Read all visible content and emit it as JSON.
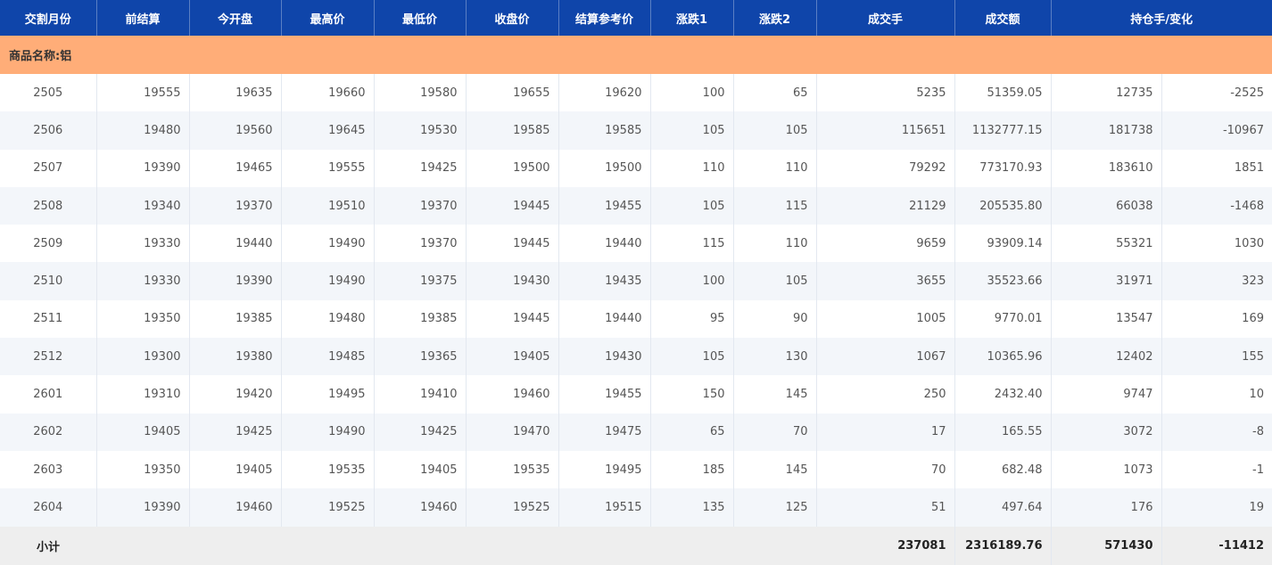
{
  "headers": [
    "交割月份",
    "前结算",
    "今开盘",
    "最高价",
    "最低价",
    "收盘价",
    "结算参考价",
    "涨跌1",
    "涨跌2",
    "成交手",
    "成交额",
    "持仓手/变化"
  ],
  "category_label": "商品名称:铝",
  "rows": [
    [
      "2505",
      "19555",
      "19635",
      "19660",
      "19580",
      "19655",
      "19620",
      "100",
      "65",
      "5235",
      "51359.05",
      "12735",
      "-2525"
    ],
    [
      "2506",
      "19480",
      "19560",
      "19645",
      "19530",
      "19585",
      "19585",
      "105",
      "105",
      "115651",
      "1132777.15",
      "181738",
      "-10967"
    ],
    [
      "2507",
      "19390",
      "19465",
      "19555",
      "19425",
      "19500",
      "19500",
      "110",
      "110",
      "79292",
      "773170.93",
      "183610",
      "1851"
    ],
    [
      "2508",
      "19340",
      "19370",
      "19510",
      "19370",
      "19445",
      "19455",
      "105",
      "115",
      "21129",
      "205535.80",
      "66038",
      "-1468"
    ],
    [
      "2509",
      "19330",
      "19440",
      "19490",
      "19370",
      "19445",
      "19440",
      "115",
      "110",
      "9659",
      "93909.14",
      "55321",
      "1030"
    ],
    [
      "2510",
      "19330",
      "19390",
      "19490",
      "19375",
      "19430",
      "19435",
      "100",
      "105",
      "3655",
      "35523.66",
      "31971",
      "323"
    ],
    [
      "2511",
      "19350",
      "19385",
      "19480",
      "19385",
      "19445",
      "19440",
      "95",
      "90",
      "1005",
      "9770.01",
      "13547",
      "169"
    ],
    [
      "2512",
      "19300",
      "19380",
      "19485",
      "19365",
      "19405",
      "19430",
      "105",
      "130",
      "1067",
      "10365.96",
      "12402",
      "155"
    ],
    [
      "2601",
      "19310",
      "19420",
      "19495",
      "19410",
      "19460",
      "19455",
      "150",
      "145",
      "250",
      "2432.40",
      "9747",
      "10"
    ],
    [
      "2602",
      "19405",
      "19425",
      "19490",
      "19425",
      "19470",
      "19475",
      "65",
      "70",
      "17",
      "165.55",
      "3072",
      "-8"
    ],
    [
      "2603",
      "19350",
      "19405",
      "19535",
      "19405",
      "19535",
      "19495",
      "185",
      "145",
      "70",
      "682.48",
      "1073",
      "-1"
    ],
    [
      "2604",
      "19390",
      "19460",
      "19525",
      "19460",
      "19525",
      "19515",
      "135",
      "125",
      "51",
      "497.64",
      "176",
      "19"
    ]
  ],
  "total": {
    "label": "小计",
    "volume": "237081",
    "turnover": "2316189.76",
    "open_interest": "571430",
    "oi_change": "-11412"
  },
  "colors": {
    "header_bg": "#0f45aa",
    "category_bg": "#ffad78",
    "stripe": "#f3f6fa",
    "total_bg": "#eeeeee"
  }
}
